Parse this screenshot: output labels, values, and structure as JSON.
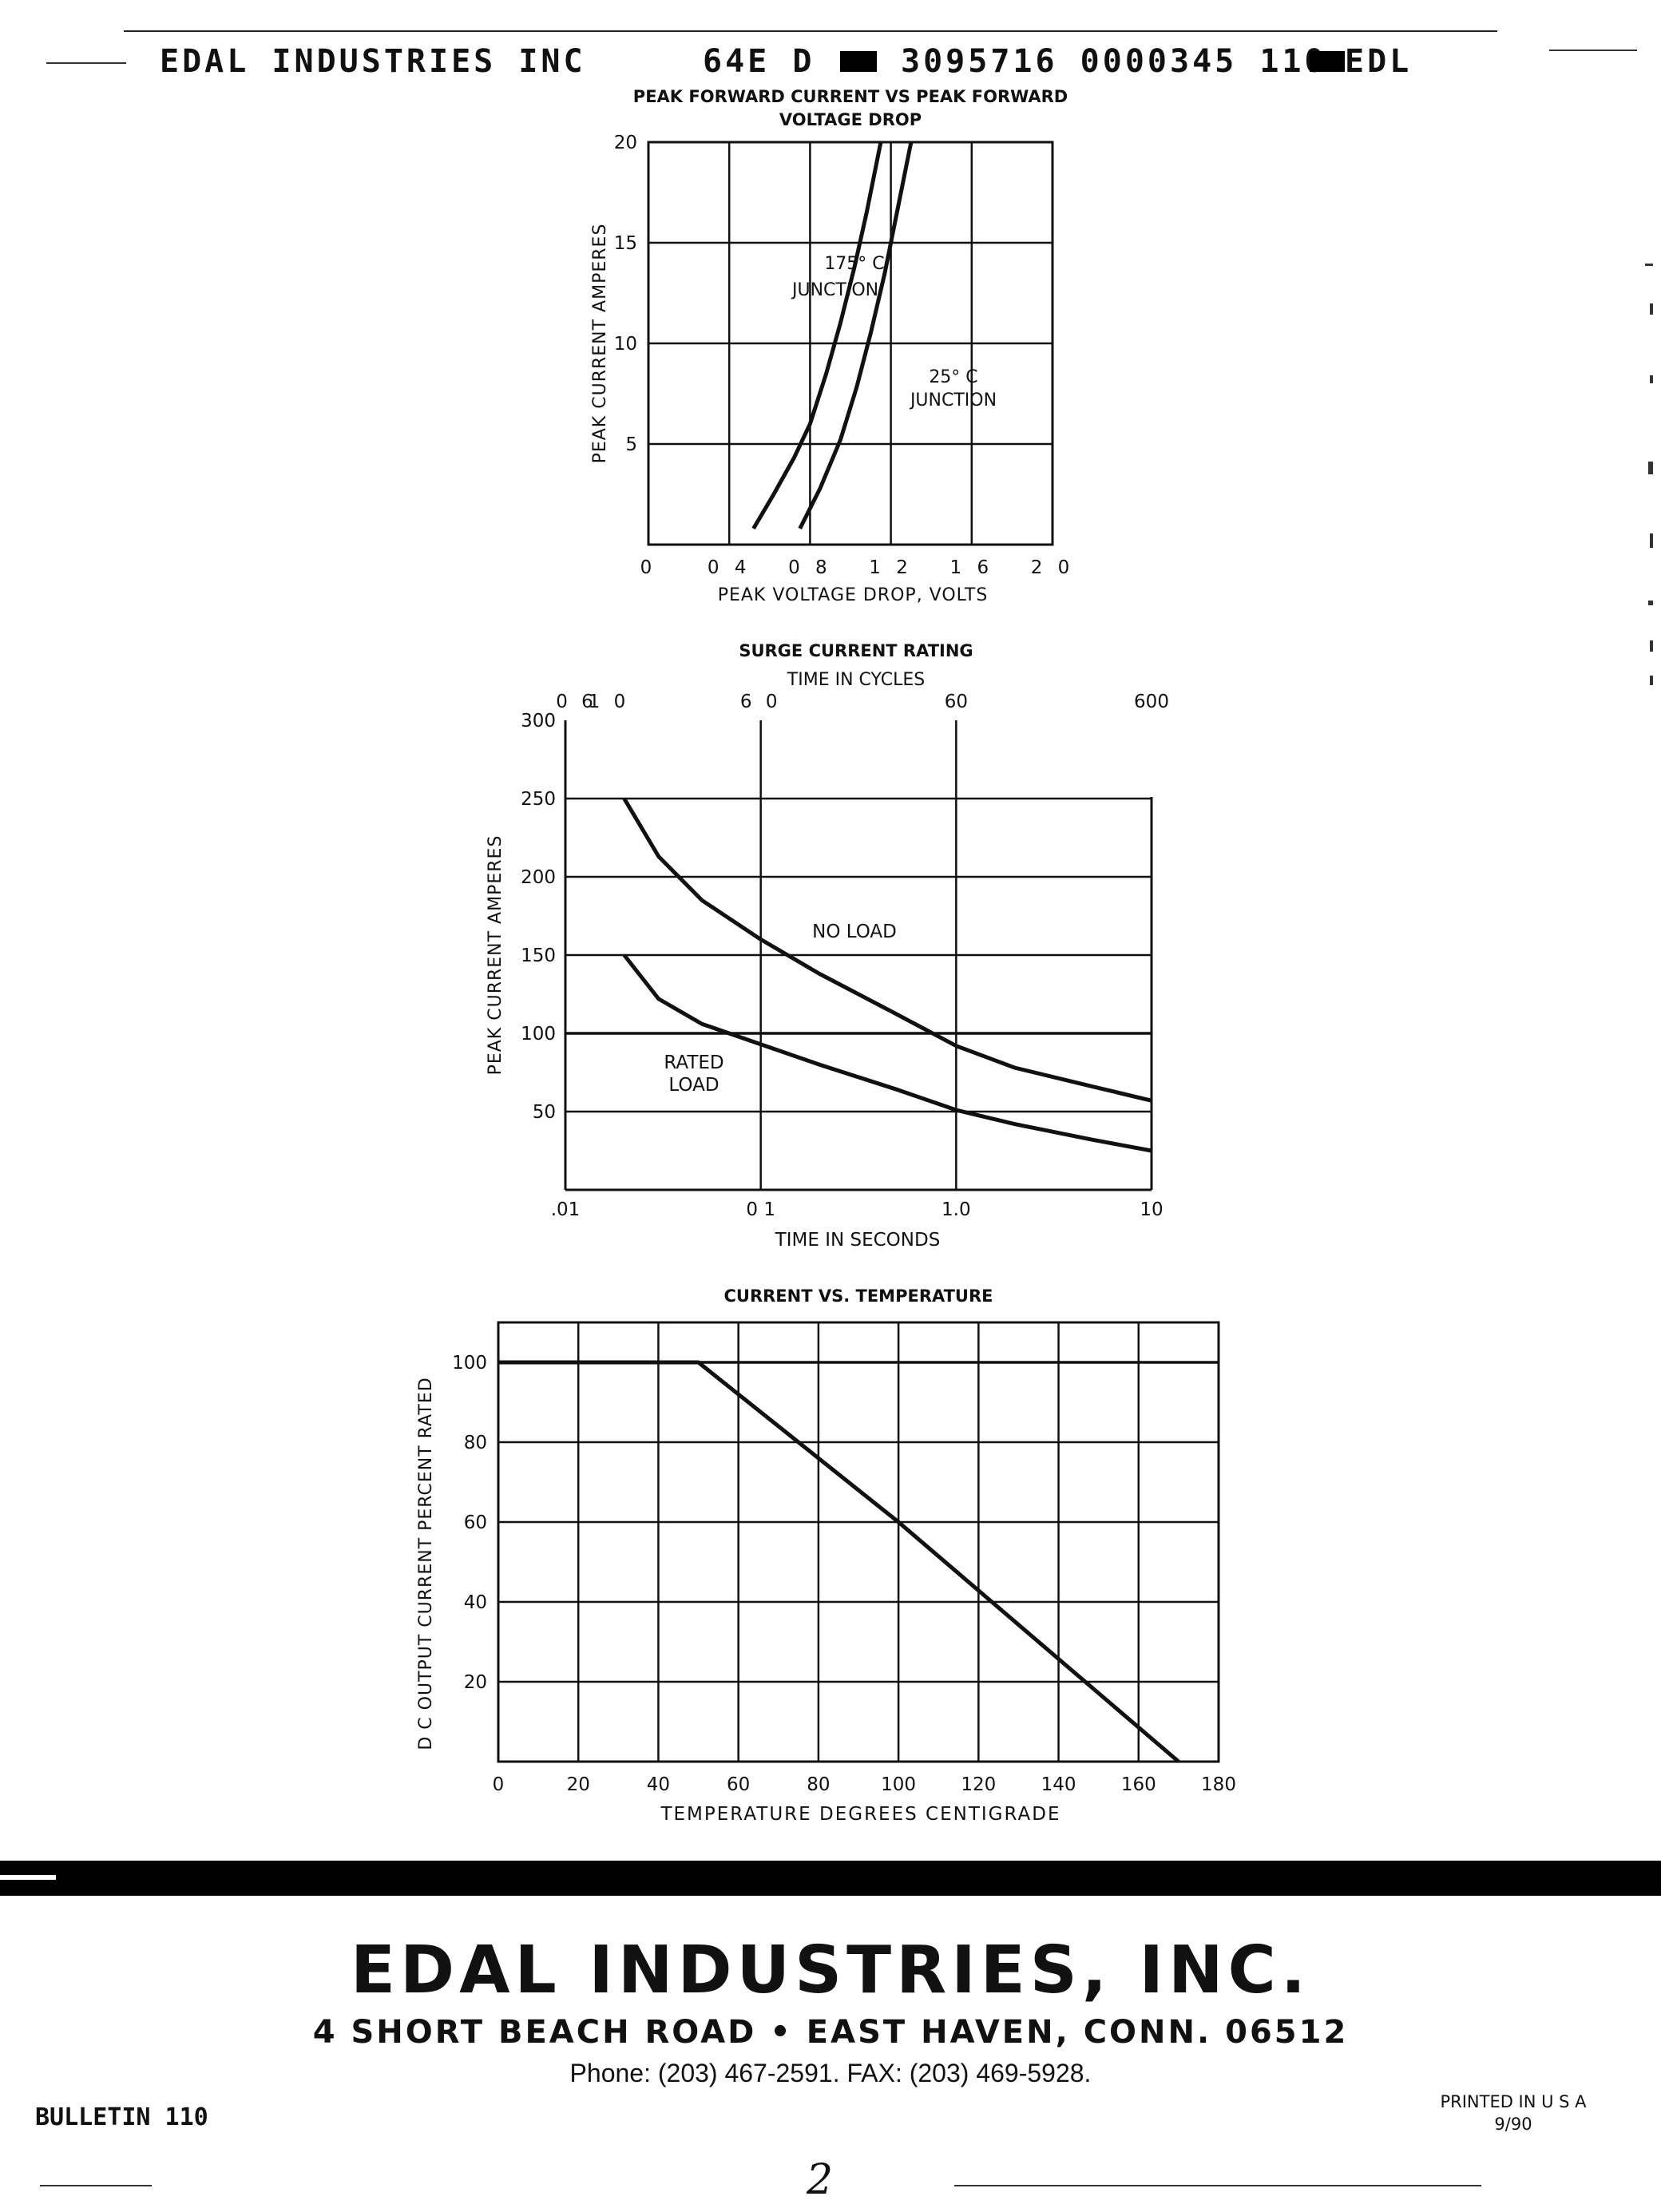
{
  "header": {
    "company": "EDAL INDUSTRIES INC",
    "code": "64E D",
    "number": "3095716 0000345 110",
    "suffix": "EDL"
  },
  "charts": [
    {
      "title_line1": "PEAK FORWARD CURRENT VS PEAK FORWARD",
      "title_line2": "VOLTAGE DROP",
      "x_tick_labels": [
        "0",
        "0 4",
        "0 8",
        "1 2",
        "1 6",
        "2 0"
      ],
      "y_tick_labels": [
        "5",
        "10",
        "15",
        "20"
      ]
    },
    {
      "title": "SURGE CURRENT RATING",
      "top_axis_label": "TIME IN CYCLES",
      "top_tick_labels": [
        "0 6",
        "1 0",
        "6 0",
        "60",
        "600"
      ],
      "x_tick_labels": [
        ".01",
        "0 1",
        "1.0",
        "10"
      ],
      "y_tick_labels": [
        "50",
        "100",
        "150",
        "200",
        "250",
        "300"
      ]
    },
    {
      "title": "CURRENT VS. TEMPERATURE",
      "x_tick_labels": [
        "0",
        "20",
        "40",
        "60",
        "80",
        "100",
        "120",
        "140",
        "160",
        "180"
      ],
      "y_tick_labels": [
        "20",
        "40",
        "60",
        "80",
        "100"
      ]
    }
  ],
  "chart_data": [
    {
      "type": "line",
      "title": "PEAK FORWARD CURRENT VS PEAK FORWARD VOLTAGE DROP",
      "xlabel": "PEAK VOLTAGE DROP, VOLTS",
      "ylabel": "PEAK CURRENT AMPERES",
      "xlim": [
        0,
        2.0
      ],
      "ylim": [
        0,
        20
      ],
      "grid": true,
      "series": [
        {
          "name": "175° C JUNCTION",
          "x": [
            0.52,
            0.62,
            0.72,
            0.8,
            0.88,
            0.95,
            1.02,
            1.08,
            1.15
          ],
          "y": [
            0.8,
            2.5,
            4.3,
            6.0,
            8.5,
            11.0,
            13.8,
            16.5,
            20.0
          ]
        },
        {
          "name": "25° C JUNCTION",
          "x": [
            0.75,
            0.85,
            0.95,
            1.03,
            1.1,
            1.17,
            1.22,
            1.27,
            1.3
          ],
          "y": [
            0.8,
            2.8,
            5.2,
            7.8,
            10.5,
            13.5,
            16.0,
            18.5,
            20.0
          ]
        }
      ]
    },
    {
      "type": "line",
      "title": "SURGE CURRENT RATING",
      "xlabel": "TIME IN SECONDS",
      "x2label": "TIME IN CYCLES",
      "ylabel": "PEAK CURRENT AMPERES",
      "xscale": "log",
      "xlim": [
        0.01,
        10
      ],
      "ylim": [
        0,
        300
      ],
      "grid": true,
      "series": [
        {
          "name": "NO LOAD",
          "x": [
            0.02,
            0.03,
            0.05,
            0.1,
            0.2,
            0.5,
            1.0,
            2.0,
            5.0,
            10
          ],
          "y": [
            250,
            213,
            185,
            160,
            138,
            112,
            92,
            78,
            66,
            57
          ]
        },
        {
          "name": "RATED LOAD",
          "x": [
            0.02,
            0.03,
            0.05,
            0.1,
            0.2,
            0.5,
            1.0,
            2.0,
            5.0,
            10
          ],
          "y": [
            150,
            122,
            106,
            93,
            80,
            64,
            51,
            42,
            32,
            25
          ]
        }
      ]
    },
    {
      "type": "line",
      "title": "CURRENT VS. TEMPERATURE",
      "xlabel": "TEMPERATURE DEGREES CENTIGRADE",
      "ylabel": "D C OUTPUT CURRENT PERCENT RATED",
      "xlim": [
        0,
        180
      ],
      "ylim": [
        0,
        100
      ],
      "grid": true,
      "series": [
        {
          "x": [
            0,
            50,
            100,
            170
          ],
          "y": [
            100,
            100,
            60,
            0
          ]
        }
      ],
      "reference_line": {
        "y": 100
      }
    }
  ],
  "footer": {
    "company": "EDAL INDUSTRIES, INC.",
    "address": "4 SHORT BEACH ROAD • EAST HAVEN, CONN. 06512",
    "phone": "Phone: (203) 467-2591. FAX: (203) 469-5928.",
    "bulletin": "BULLETIN 110",
    "printed": "PRINTED IN U S A",
    "date": "9/90",
    "page": "2"
  }
}
